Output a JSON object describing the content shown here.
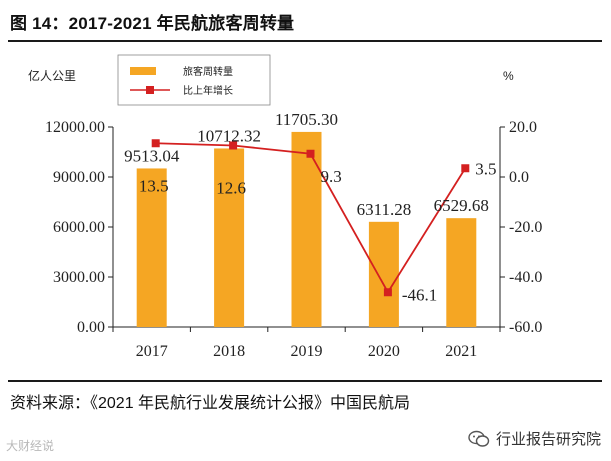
{
  "figure": {
    "title": "图 14：2017-2021 年民航旅客周转量",
    "source": "资料来源：《2021 年民航行业发展统计公报》中国民航局",
    "watermark_left": "大财经说",
    "watermark_right": "行业报告研究院"
  },
  "colors": {
    "bar": "#F5A623",
    "line": "#D42020",
    "axis": "#222222"
  },
  "icons": {
    "wechat": "wechat-icon"
  },
  "chart_data": {
    "type": "bar",
    "categories": [
      "2017",
      "2018",
      "2019",
      "2020",
      "2021"
    ],
    "series": [
      {
        "name": "旅客周转量",
        "type": "bar",
        "axis": "left",
        "values": [
          9513.04,
          10712.32,
          11705.3,
          6311.28,
          6529.68
        ],
        "labels": [
          "9513.04",
          "10712.32",
          "11705.30",
          "6311.28",
          "6529.68"
        ]
      },
      {
        "name": "比上年增长",
        "type": "line",
        "axis": "right",
        "values": [
          13.5,
          12.6,
          9.3,
          -46.1,
          3.5
        ],
        "labels": [
          "13.5",
          "12.6",
          "9.3",
          "-46.1",
          "3.5"
        ]
      }
    ],
    "left_axis": {
      "unit": "亿人公里",
      "range": [
        0,
        12000
      ],
      "ticks": [
        0,
        3000,
        6000,
        9000,
        12000
      ],
      "tick_labels": [
        "0.00",
        "3000.00",
        "6000.00",
        "9000.00",
        "12000.00"
      ]
    },
    "right_axis": {
      "unit": "%",
      "range": [
        -60,
        20
      ],
      "ticks": [
        -60,
        -40,
        -20,
        0,
        20
      ],
      "tick_labels": [
        "-60.0",
        "-40.0",
        "-20.0",
        "0.0",
        "20.0"
      ]
    },
    "legend": {
      "position": "top-left",
      "entries": [
        "旅客周转量",
        "比上年增长"
      ]
    },
    "grid": false
  }
}
